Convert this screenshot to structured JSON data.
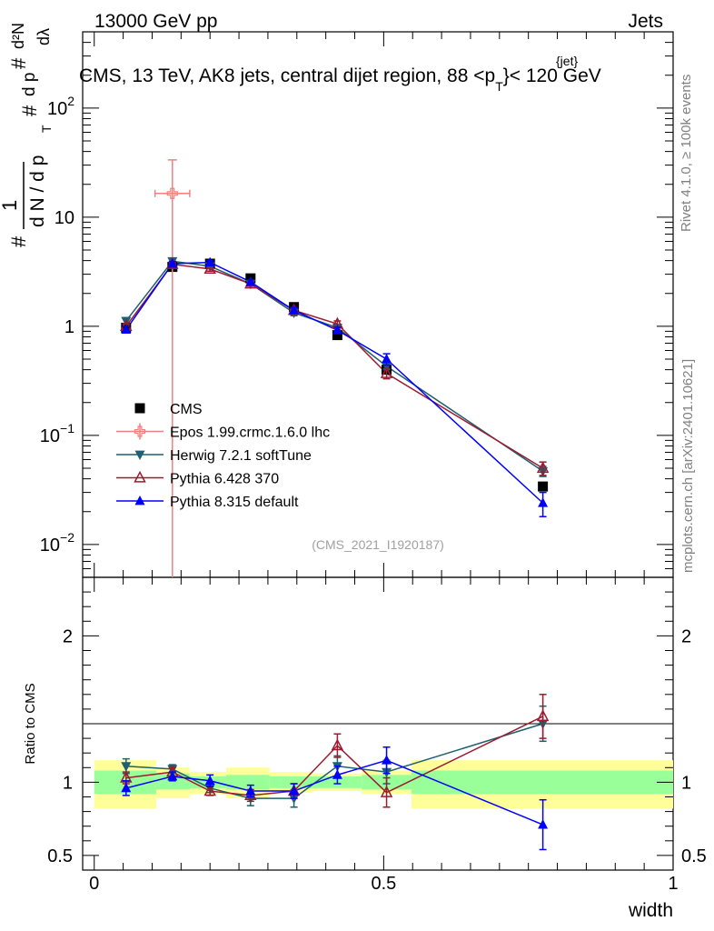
{
  "header": {
    "left": "13000 GeV pp",
    "right": "Jets"
  },
  "title": {
    "main": "CMS, 13 TeV, AK8 jets, central dijet region, 88 <p",
    "sub": "T",
    "sup": "{jet}",
    "tail": "}< 120 GeV"
  },
  "side_labels": {
    "rivet": "Rivet 4.1.0, ≥ 100k events",
    "mcplots": "mcplots.cern.ch [arXiv:2401.10621]"
  },
  "analysis_id": "(CMS_2021_I1920187)",
  "ylabel_ratio": "Ratio to CMS",
  "chart_data": [
    {
      "type": "scatter",
      "panel": "main",
      "yscale": "log",
      "ylim": [
        0.005,
        500
      ],
      "xlim": [
        -0.02,
        1.0
      ],
      "yticks": [
        {
          "value": 0.01,
          "base": "10",
          "exp": "−2"
        },
        {
          "value": 0.1,
          "base": "10",
          "exp": "−1"
        },
        {
          "value": 1,
          "base": "1",
          "exp": ""
        },
        {
          "value": 10,
          "base": "10",
          "exp": ""
        },
        {
          "value": 100,
          "base": "10",
          "exp": "2"
        }
      ],
      "ylabel": {
        "hash": "#",
        "one": "1",
        "dN": "d N / d p",
        "T": "T",
        "top": "d²N",
        "bot1": "d p",
        "bot2": "dλ",
        "hash2": "#",
        "hash3": "#"
      },
      "series": [
        {
          "name": "CMS",
          "color": "#000000",
          "marker": "square",
          "x": [
            0.055,
            0.135,
            0.2,
            0.27,
            0.345,
            0.42,
            0.505,
            0.775
          ],
          "y": [
            0.97,
            3.5,
            3.75,
            2.75,
            1.5,
            0.83,
            0.4,
            0.034
          ],
          "xerr": [
            0,
            0,
            0,
            0,
            0,
            0,
            0,
            0
          ],
          "yerr": [
            0,
            0,
            0,
            0,
            0,
            0,
            0,
            0
          ]
        },
        {
          "name": "Epos 1.99.crmc.1.6.0 lhc",
          "color": "#f08080",
          "marker": "open-cross",
          "x": [
            0.135
          ],
          "y": [
            16.5
          ],
          "xerr": [
            0.03
          ],
          "yerr_up": [
            17
          ],
          "yerr_down": [
            16.5
          ]
        },
        {
          "name": "Herwig 7.2.1 softTune",
          "color": "#1f5f6f",
          "marker": "down-triangle",
          "x": [
            0.055,
            0.135,
            0.2,
            0.27,
            0.345,
            0.42,
            0.505,
            0.775
          ],
          "y": [
            1.12,
            3.95,
            3.55,
            2.45,
            1.33,
            0.97,
            0.43,
            0.047
          ],
          "xerr": [
            0,
            0,
            0,
            0,
            0,
            0,
            0,
            0
          ],
          "yerr": [
            0.08,
            0.2,
            0.15,
            0.12,
            0.08,
            0.06,
            0.03,
            0.005
          ]
        },
        {
          "name": "Pythia 6.428 370",
          "color": "#9b1b30",
          "marker": "open-triangle",
          "x": [
            0.055,
            0.135,
            0.2,
            0.27,
            0.345,
            0.42,
            0.505,
            0.775
          ],
          "y": [
            1.0,
            3.7,
            3.35,
            2.45,
            1.4,
            1.05,
            0.37,
            0.05
          ],
          "xerr": [
            0,
            0,
            0,
            0,
            0,
            0,
            0,
            0
          ],
          "yerr": [
            0.06,
            0.18,
            0.15,
            0.12,
            0.08,
            0.07,
            0.04,
            0.007
          ]
        },
        {
          "name": "Pythia 8.315 default",
          "color": "#0000ff",
          "marker": "triangle",
          "x": [
            0.055,
            0.135,
            0.2,
            0.27,
            0.345,
            0.42,
            0.505,
            0.775
          ],
          "y": [
            0.93,
            3.75,
            3.85,
            2.55,
            1.4,
            0.92,
            0.5,
            0.024
          ],
          "xerr": [
            0,
            0,
            0,
            0,
            0,
            0,
            0,
            0
          ],
          "yerr": [
            0.06,
            0.18,
            0.15,
            0.12,
            0.08,
            0.06,
            0.06,
            0.006
          ]
        }
      ]
    },
    {
      "type": "line",
      "panel": "ratio",
      "ylim": [
        0.4,
        2.4
      ],
      "xlim": [
        -0.02,
        1.0
      ],
      "xlabel": "width",
      "xticks": [
        {
          "value": 0,
          "label": "0"
        },
        {
          "value": 0.5,
          "label": "0.5"
        },
        {
          "value": 1,
          "label": "1"
        }
      ],
      "yticks": [
        {
          "value": 0.5,
          "label": "0.5"
        },
        {
          "value": 1,
          "label": "1"
        },
        {
          "value": 2,
          "label": "2"
        }
      ],
      "bands": [
        {
          "x0": 0.0,
          "x1": 0.107,
          "green": [
            0.92,
            1.08
          ],
          "yellow": [
            0.82,
            1.15
          ]
        },
        {
          "x0": 0.107,
          "x1": 0.165,
          "green": [
            0.95,
            1.06
          ],
          "yellow": [
            0.89,
            1.1
          ]
        },
        {
          "x0": 0.165,
          "x1": 0.228,
          "green": [
            0.96,
            1.04
          ],
          "yellow": [
            0.92,
            1.07
          ]
        },
        {
          "x0": 0.228,
          "x1": 0.303,
          "green": [
            0.95,
            1.05
          ],
          "yellow": [
            0.89,
            1.1
          ]
        },
        {
          "x0": 0.303,
          "x1": 0.378,
          "green": [
            0.96,
            1.04
          ],
          "yellow": [
            0.93,
            1.07
          ]
        },
        {
          "x0": 0.378,
          "x1": 0.462,
          "green": [
            0.96,
            1.04
          ],
          "yellow": [
            0.94,
            1.06
          ]
        },
        {
          "x0": 0.462,
          "x1": 0.548,
          "green": [
            0.95,
            1.05
          ],
          "yellow": [
            0.92,
            1.08
          ]
        },
        {
          "x0": 0.548,
          "x1": 1.0,
          "green": [
            0.92,
            1.08
          ],
          "yellow": [
            0.82,
            1.15
          ]
        }
      ],
      "series": [
        {
          "name": "Herwig 7.2.1 softTune",
          "color": "#1f5f6f",
          "marker": "down-triangle",
          "x": [
            0.055,
            0.135,
            0.2,
            0.27,
            0.345,
            0.42,
            0.505,
            0.775
          ],
          "y": [
            1.11,
            1.09,
            0.96,
            0.89,
            0.89,
            1.11,
            1.07,
            1.4
          ],
          "yerr": [
            0.05,
            0.03,
            0.03,
            0.05,
            0.06,
            0.07,
            0.08,
            0.12
          ]
        },
        {
          "name": "Pythia 6.428 370",
          "color": "#9b1b30",
          "marker": "open-triangle",
          "x": [
            0.055,
            0.135,
            0.2,
            0.27,
            0.345,
            0.42,
            0.505,
            0.775
          ],
          "y": [
            1.03,
            1.07,
            0.94,
            0.91,
            0.94,
            1.25,
            0.93,
            1.45
          ],
          "yerr": [
            0.04,
            0.03,
            0.03,
            0.04,
            0.05,
            0.08,
            0.1,
            0.15
          ]
        },
        {
          "name": "Pythia 8.315 default",
          "color": "#0000ff",
          "marker": "triangle",
          "x": [
            0.055,
            0.135,
            0.2,
            0.27,
            0.345,
            0.42,
            0.505,
            0.775
          ],
          "y": [
            0.96,
            1.04,
            1.01,
            0.94,
            0.94,
            1.05,
            1.15,
            0.71
          ],
          "yerr": [
            0.05,
            0.03,
            0.04,
            0.04,
            0.05,
            0.06,
            0.09,
            0.17
          ]
        }
      ]
    }
  ]
}
